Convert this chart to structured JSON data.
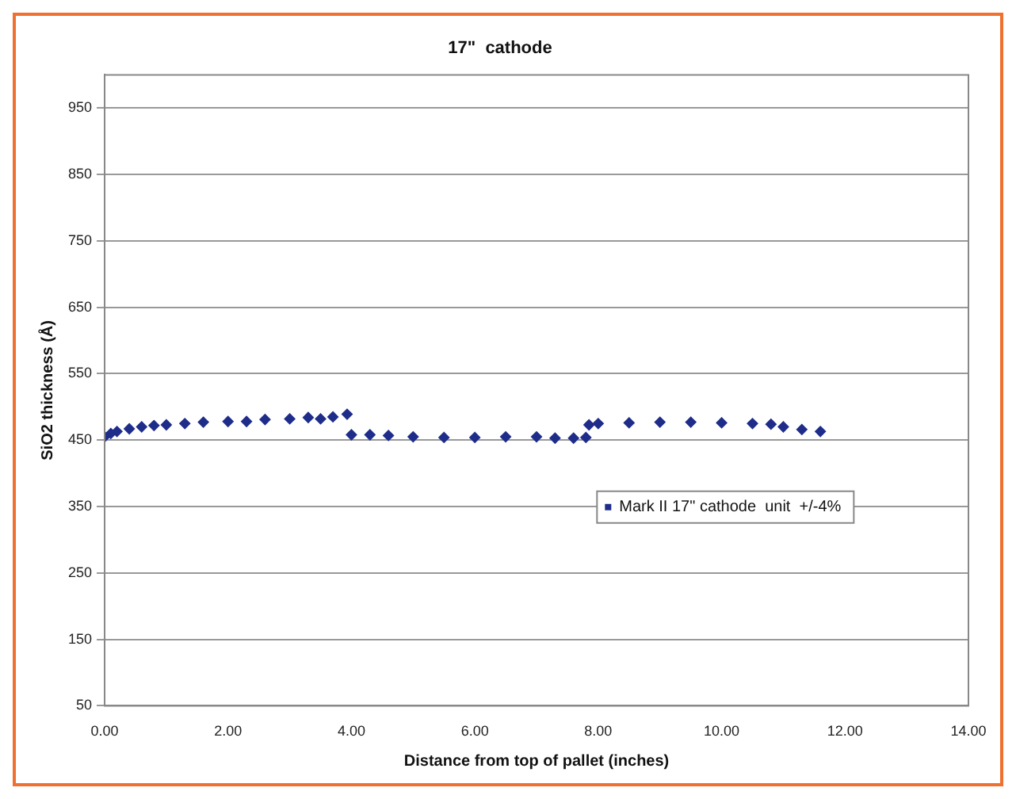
{
  "chart_data": {
    "type": "scatter",
    "title": "17\"  cathode",
    "xlabel": "Distance from top of pallet (inches)",
    "ylabel": "SiO2 thickness (Å)",
    "series": [
      {
        "name": "Mark II 17\" cathode  unit  +/-4%",
        "color": "#1f2d8a",
        "x": [
          0,
          0.1,
          0.2,
          0.4,
          0.6,
          0.8,
          1.0,
          1.3,
          1.6,
          2.0,
          2.3,
          2.6,
          3.0,
          3.3,
          3.5,
          3.7,
          3.93,
          4.0,
          4.3,
          4.6,
          5.0,
          5.5,
          6.0,
          6.5,
          7.0,
          7.3,
          7.6,
          7.8,
          7.85,
          8.0,
          8.5,
          9.0,
          9.5,
          10.0,
          10.5,
          10.8,
          11.0,
          11.3,
          11.6
        ],
        "values": [
          455,
          460,
          463,
          467,
          470,
          472,
          473,
          475,
          477,
          478,
          478,
          481,
          482,
          484,
          482,
          485,
          489,
          458,
          458,
          457,
          455,
          454,
          454,
          455,
          455,
          453,
          453,
          454,
          473,
          475,
          476,
          477,
          477,
          476,
          475,
          474,
          470,
          466,
          463
        ]
      }
    ],
    "xlim": [
      0,
      14
    ],
    "xticks": [
      {
        "value": 0,
        "label": "0.00"
      },
      {
        "value": 2,
        "label": "2.00"
      },
      {
        "value": 4,
        "label": "4.00"
      },
      {
        "value": 6,
        "label": "6.00"
      },
      {
        "value": 8,
        "label": "8.00"
      },
      {
        "value": 10,
        "label": "10.00"
      },
      {
        "value": 12,
        "label": "12.00"
      },
      {
        "value": 14,
        "label": "14.00"
      }
    ],
    "ylim": [
      50,
      1000
    ],
    "yticks": [
      50,
      150,
      250,
      350,
      450,
      550,
      650,
      750,
      850,
      950
    ],
    "grid": "y",
    "legend": "right",
    "marker": "diamond"
  }
}
